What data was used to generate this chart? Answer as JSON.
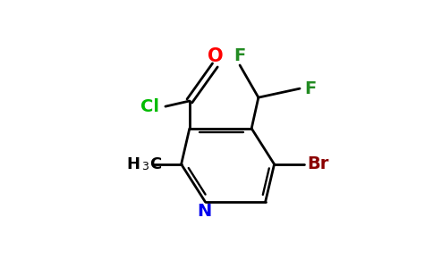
{
  "background_color": "#ffffff",
  "bond_color": "#000000",
  "bond_lw": 2.0,
  "colors": {
    "O": "#ff0000",
    "Cl": "#00bb00",
    "F": "#228B22",
    "N": "#0000ee",
    "Br": "#8B0000",
    "C": "#000000",
    "H": "#000000"
  },
  "figsize": [
    4.84,
    3.0
  ],
  "dpi": 100
}
